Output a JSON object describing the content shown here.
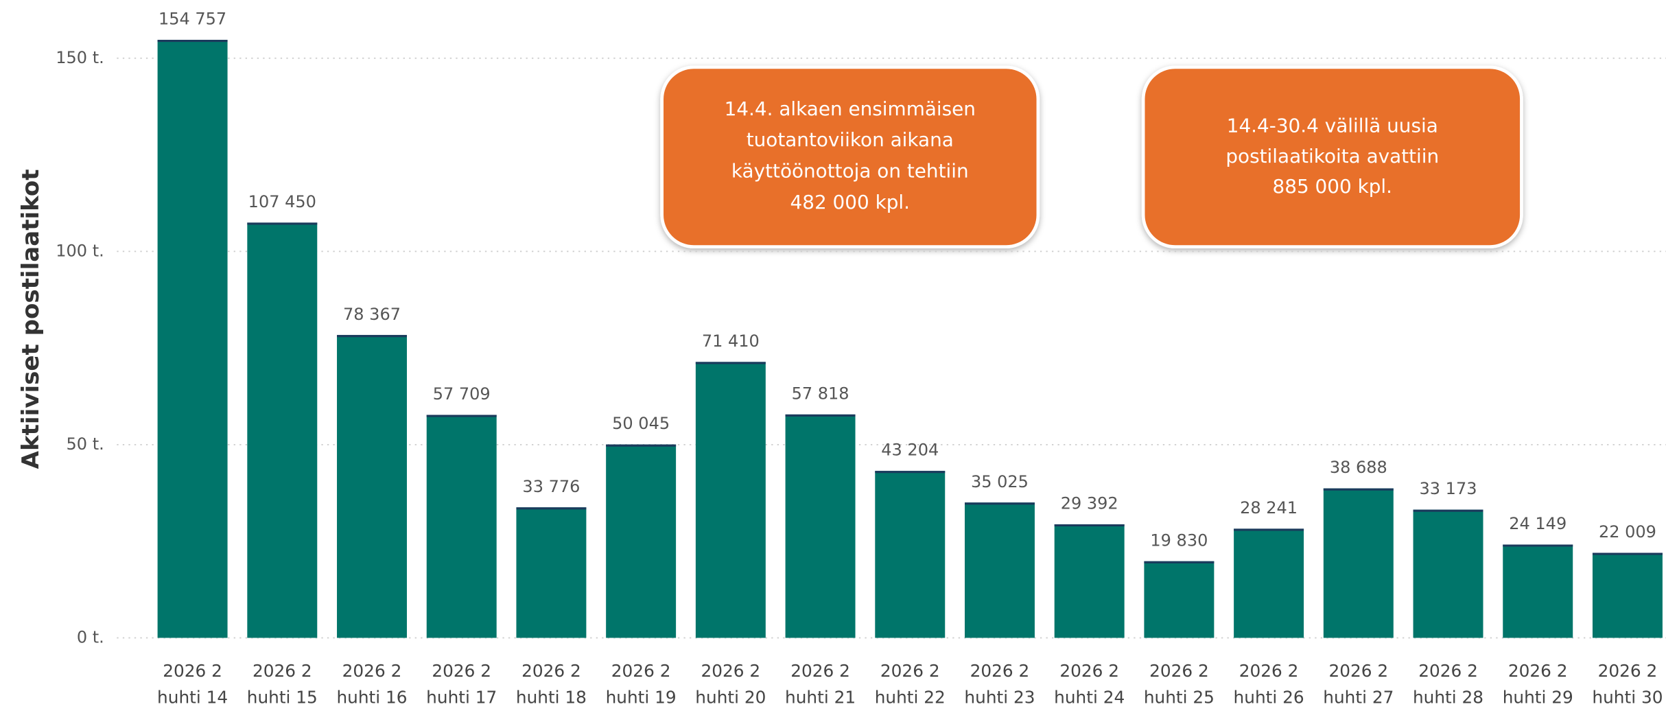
{
  "chart_data": {
    "type": "bar",
    "y_label": "Aktiiviset postilaatikot",
    "categories": [
      [
        "2026 2",
        "huhti 14"
      ],
      [
        "2026 2",
        "huhti 15"
      ],
      [
        "2026 2",
        "huhti 16"
      ],
      [
        "2026 2",
        "huhti 17"
      ],
      [
        "2026 2",
        "huhti 18"
      ],
      [
        "2026 2",
        "huhti 19"
      ],
      [
        "2026 2",
        "huhti 20"
      ],
      [
        "2026 2",
        "huhti 21"
      ],
      [
        "2026 2",
        "huhti 22"
      ],
      [
        "2026 2",
        "huhti 23"
      ],
      [
        "2026 2",
        "huhti 24"
      ],
      [
        "2026 2",
        "huhti 25"
      ],
      [
        "2026 2",
        "huhti 26"
      ],
      [
        "2026 2",
        "huhti 27"
      ],
      [
        "2026 2",
        "huhti 28"
      ],
      [
        "2026 2",
        "huhti 29"
      ],
      [
        "2026 2",
        "huhti 30"
      ]
    ],
    "values": [
      154757,
      107450,
      78367,
      57709,
      33776,
      50045,
      71410,
      57818,
      43204,
      35025,
      29392,
      19830,
      28241,
      38688,
      33173,
      24149,
      22009
    ],
    "value_labels": [
      "154 757",
      "107 450",
      "78 367",
      "57 709",
      "33 776",
      "50 045",
      "71 410",
      "57 818",
      "43 204",
      "35 025",
      "29 392",
      "19 830",
      "28 241",
      "38 688",
      "33 173",
      "24 149",
      "22 009"
    ],
    "color": "#00756A",
    "ylim": [
      0,
      165000
    ],
    "yticks": [
      {
        "value": 0,
        "label": "0 t."
      },
      {
        "value": 50000,
        "label": "50 t."
      },
      {
        "value": 100000,
        "label": "100 t."
      },
      {
        "value": 150000,
        "label": "150 t."
      }
    ],
    "grid": true,
    "annotations": [
      [
        "14.4. alkaen ensimmäisen",
        "tuotantoviikon aikana",
        "käyttöönottoja on tehtiin",
        "482 000 kpl."
      ],
      [
        "14.4-30.4 välillä uusia",
        "postilaatikoita avattiin",
        "885 000 kpl."
      ]
    ]
  }
}
